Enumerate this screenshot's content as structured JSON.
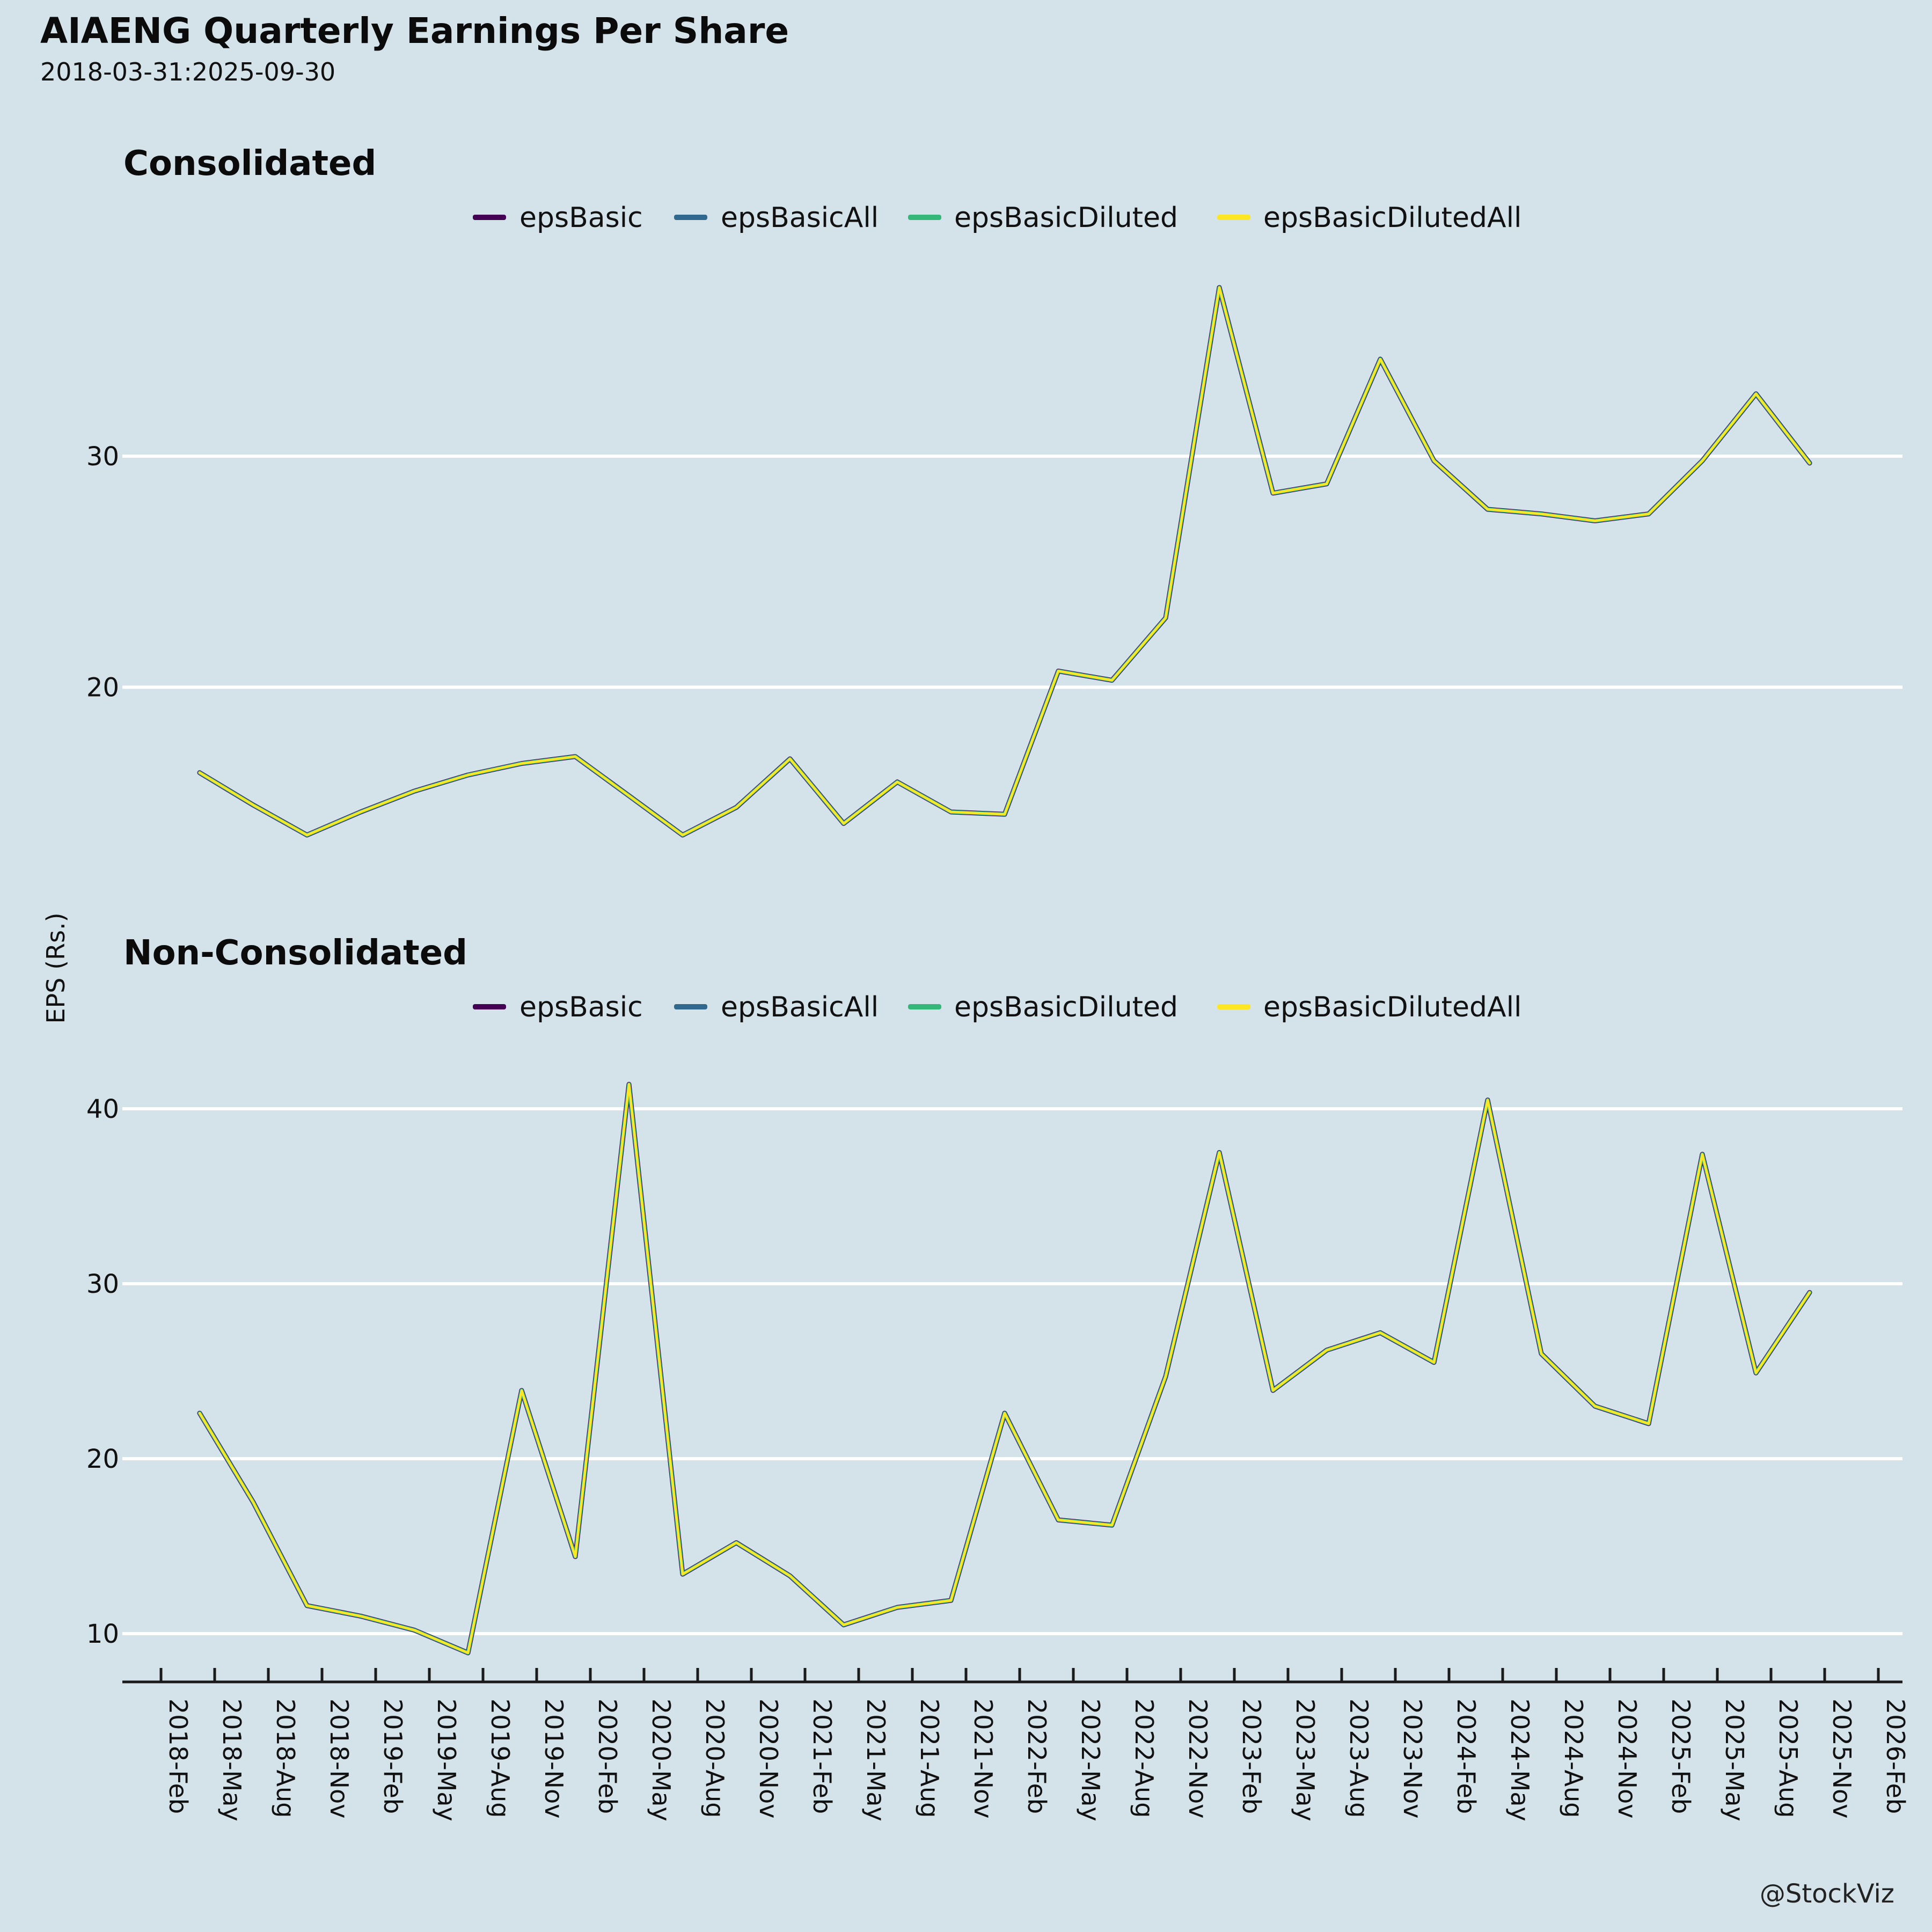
{
  "page": {
    "background": "#d4e2ea"
  },
  "header": {
    "title": "AIAENG Quarterly Earnings Per Share",
    "subtitle": "2018-03-31:2025-09-30"
  },
  "y_axis_label": "EPS (Rs.)",
  "footer": {
    "credit": "@StockViz"
  },
  "chart_data": [
    {
      "type": "line",
      "title": "Consolidated",
      "ylabel": "EPS (Rs.)",
      "legend_position": "top-center",
      "grid": "horizontal-only",
      "gridlines": [
        20,
        30
      ],
      "ylim": [
        11,
        39
      ],
      "categories": [
        "2018-03-31",
        "2018-06-30",
        "2018-09-30",
        "2018-12-31",
        "2019-03-31",
        "2019-06-30",
        "2019-09-30",
        "2019-12-31",
        "2020-03-31",
        "2020-06-30",
        "2020-09-30",
        "2020-12-31",
        "2021-03-31",
        "2021-06-30",
        "2021-09-30",
        "2021-12-31",
        "2022-03-31",
        "2022-06-30",
        "2022-09-30",
        "2022-12-31",
        "2023-03-31",
        "2023-06-30",
        "2023-09-30",
        "2023-12-31",
        "2024-03-31",
        "2024-06-30",
        "2024-09-30",
        "2024-12-31",
        "2025-03-31",
        "2025-06-30",
        "2025-09-30"
      ],
      "series": [
        {
          "name": "epsBasic",
          "color": "#440154"
        },
        {
          "name": "epsBasicAll",
          "color": "#31688e"
        },
        {
          "name": "epsBasicDiluted",
          "color": "#35b779"
        },
        {
          "name": "epsBasicDilutedAll",
          "color": "#fde725"
        }
      ],
      "note": "all four series overlap with identical values; yellow drawn on top",
      "values": [
        16.3,
        14.9,
        13.6,
        14.6,
        15.5,
        16.2,
        16.7,
        17.0,
        15.3,
        13.6,
        14.8,
        16.9,
        14.1,
        15.9,
        14.6,
        14.5,
        20.7,
        20.3,
        23.0,
        37.3,
        28.4,
        28.8,
        34.2,
        29.8,
        27.7,
        27.5,
        27.2,
        27.5,
        29.8,
        32.7,
        29.7
      ]
    },
    {
      "type": "line",
      "title": "Non-Consolidated",
      "ylabel": "EPS (Rs.)",
      "legend_position": "top-center",
      "grid": "horizontal-only",
      "gridlines": [
        10,
        20,
        30,
        40
      ],
      "ylim": [
        7,
        43
      ],
      "categories": [
        "2018-03-31",
        "2018-06-30",
        "2018-09-30",
        "2018-12-31",
        "2019-03-31",
        "2019-06-30",
        "2019-09-30",
        "2019-12-31",
        "2020-03-31",
        "2020-06-30",
        "2020-09-30",
        "2020-12-31",
        "2021-03-31",
        "2021-06-30",
        "2021-09-30",
        "2021-12-31",
        "2022-03-31",
        "2022-06-30",
        "2022-09-30",
        "2022-12-31",
        "2023-03-31",
        "2023-06-30",
        "2023-09-30",
        "2023-12-31",
        "2024-03-31",
        "2024-06-30",
        "2024-09-30",
        "2024-12-31",
        "2025-03-31",
        "2025-06-30",
        "2025-09-30"
      ],
      "series": [
        {
          "name": "epsBasic",
          "color": "#440154"
        },
        {
          "name": "epsBasicAll",
          "color": "#31688e"
        },
        {
          "name": "epsBasicDiluted",
          "color": "#35b779"
        },
        {
          "name": "epsBasicDilutedAll",
          "color": "#fde725"
        }
      ],
      "note": "all four series overlap with identical values; yellow drawn on top",
      "values": [
        22.6,
        17.5,
        11.6,
        11.0,
        10.2,
        8.9,
        23.9,
        14.4,
        41.4,
        13.4,
        15.2,
        13.3,
        10.5,
        11.5,
        11.9,
        22.6,
        16.5,
        16.2,
        24.7,
        37.5,
        23.9,
        26.2,
        27.2,
        25.5,
        40.5,
        26.0,
        23.0,
        22.0,
        37.4,
        24.9,
        29.5
      ]
    }
  ],
  "x_tick_labels": [
    "2018-Feb",
    "2018-May",
    "2018-Aug",
    "2018-Nov",
    "2019-Feb",
    "2019-May",
    "2019-Aug",
    "2019-Nov",
    "2020-Feb",
    "2020-May",
    "2020-Aug",
    "2020-Nov",
    "2021-Feb",
    "2021-May",
    "2021-Aug",
    "2021-Nov",
    "2022-Feb",
    "2022-May",
    "2022-Aug",
    "2022-Nov",
    "2023-Feb",
    "2023-May",
    "2023-Aug",
    "2023-Nov",
    "2024-Feb",
    "2024-May",
    "2024-Aug",
    "2024-Nov",
    "2025-Feb",
    "2025-May",
    "2025-Aug",
    "2025-Nov",
    "2026-Feb"
  ]
}
